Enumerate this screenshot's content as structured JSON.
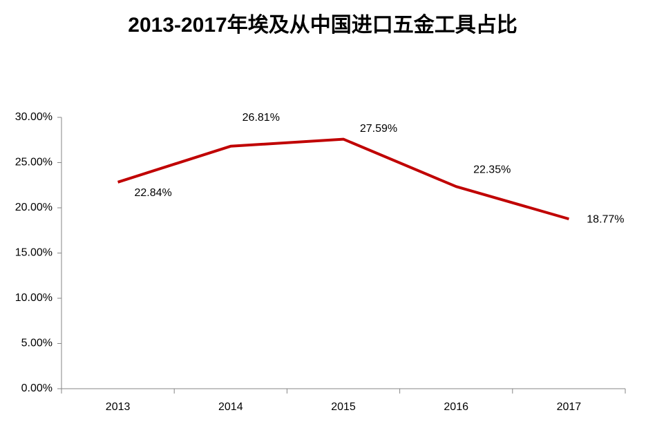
{
  "chart_data": {
    "type": "line",
    "title": "2013-2017年埃及从中国进口五金工具占比",
    "categories": [
      "2013",
      "2014",
      "2015",
      "2016",
      "2017"
    ],
    "series": [
      {
        "name": "占比",
        "color": "#c00000",
        "values": [
          22.84,
          26.81,
          27.59,
          22.35,
          18.77
        ],
        "value_labels": [
          "22.84%",
          "26.81%",
          "27.59%",
          "22.35%",
          "18.77%"
        ]
      }
    ],
    "ylim": [
      0,
      30
    ],
    "yticks": [
      {
        "value": 0,
        "label": "0.00%"
      },
      {
        "value": 5,
        "label": "5.00%"
      },
      {
        "value": 10,
        "label": "10.00%"
      },
      {
        "value": 15,
        "label": "15.00%"
      },
      {
        "value": 20,
        "label": "20.00%"
      },
      {
        "value": 25,
        "label": "25.00%"
      },
      {
        "value": 30,
        "label": "30.00%"
      }
    ],
    "grid": false
  }
}
